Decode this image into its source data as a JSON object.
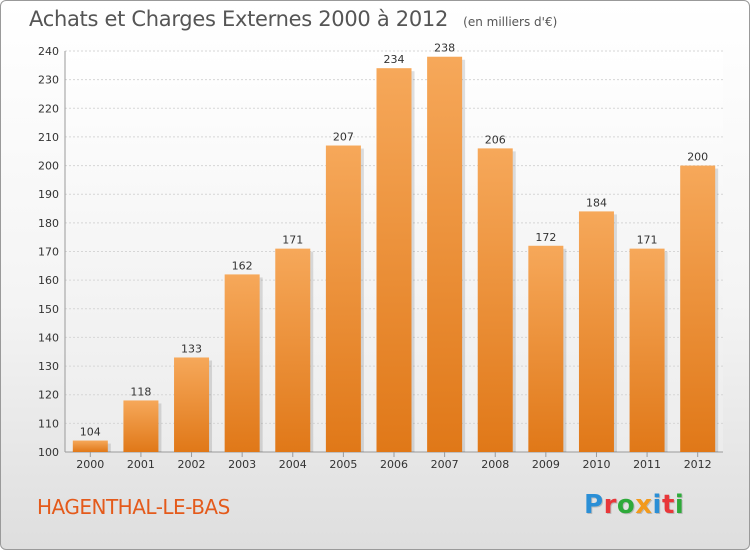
{
  "header": {
    "title": "Achats et Charges Externes 2000 à 2012",
    "subtitle": "(en milliers d'€)"
  },
  "footer": {
    "place": "HAGENTHAL-LE-BAS",
    "brand": {
      "text": "Proxiti",
      "colors": [
        "#2b8fd6",
        "#e8373a",
        "#2eaa3a",
        "#f39a1c",
        "#2b8fd6",
        "#e8373a",
        "#2eaa3a"
      ]
    }
  },
  "chart_data": {
    "type": "bar",
    "title": "Achats et Charges Externes 2000 à 2012",
    "subtitle": "(en milliers d'€)",
    "categories": [
      "2000",
      "2001",
      "2002",
      "2003",
      "2004",
      "2005",
      "2006",
      "2007",
      "2008",
      "2009",
      "2010",
      "2011",
      "2012"
    ],
    "values": [
      104,
      118,
      133,
      162,
      171,
      207,
      234,
      238,
      206,
      172,
      184,
      171,
      200
    ],
    "ylim": [
      100,
      240
    ],
    "yticks": [
      100,
      110,
      120,
      130,
      140,
      150,
      160,
      170,
      180,
      190,
      200,
      210,
      220,
      230,
      240
    ],
    "grid": true,
    "bar_color": "#f0852a",
    "bar_color_light": "#f6a85a",
    "bar_color_dark": "#e07818"
  }
}
